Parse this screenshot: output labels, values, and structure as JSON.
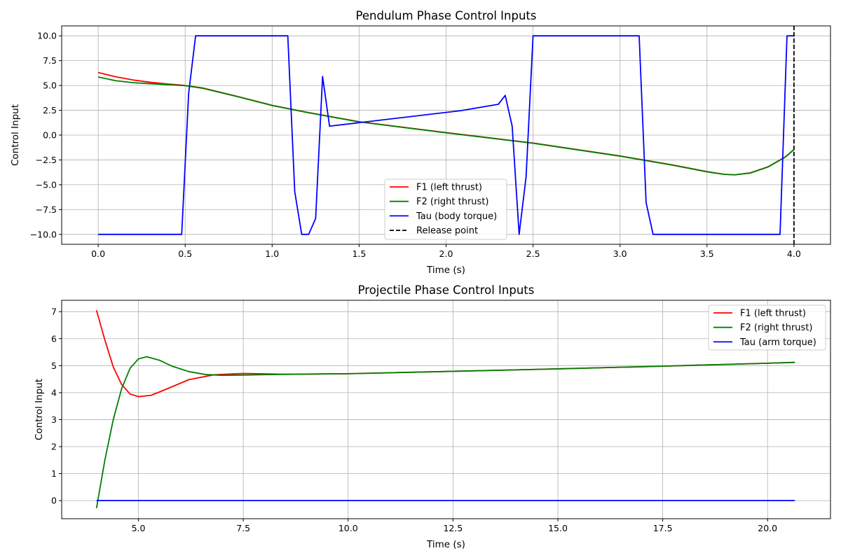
{
  "chart_data": [
    {
      "type": "line",
      "title": "Pendulum Phase Control Inputs",
      "xlabel": "Time (s)",
      "ylabel": "Control Input",
      "xlim": [
        -0.21,
        4.21
      ],
      "ylim": [
        -11.0,
        11.0
      ],
      "xticks": [
        0.0,
        0.5,
        1.0,
        1.5,
        2.0,
        2.5,
        3.0,
        3.5,
        4.0
      ],
      "xtick_labels": [
        "0.0",
        "0.5",
        "1.0",
        "1.5",
        "2.0",
        "2.5",
        "3.0",
        "3.5",
        "4.0"
      ],
      "yticks": [
        -10.0,
        -7.5,
        -5.0,
        -2.5,
        0.0,
        2.5,
        5.0,
        7.5,
        10.0
      ],
      "ytick_labels": [
        "−10.0",
        "−7.5",
        "−5.0",
        "−2.5",
        "0.0",
        "2.5",
        "5.0",
        "7.5",
        "10.0"
      ],
      "grid": true,
      "legend_position": "lower-center",
      "series": [
        {
          "name": "F1 (left thrust)",
          "color": "#ff0000",
          "style": "solid",
          "x": [
            0.0,
            0.1,
            0.2,
            0.3,
            0.4,
            0.5,
            0.6,
            0.8,
            1.0,
            1.2,
            1.5,
            2.0,
            2.5,
            3.0,
            3.3,
            3.5,
            3.6,
            3.66,
            3.75,
            3.85,
            3.95,
            4.0
          ],
          "y": [
            6.3,
            5.88,
            5.55,
            5.32,
            5.15,
            5.0,
            4.75,
            3.9,
            3.0,
            2.3,
            1.35,
            0.25,
            -0.8,
            -2.1,
            -3.0,
            -3.68,
            -3.95,
            -4.0,
            -3.8,
            -3.2,
            -2.2,
            -1.45
          ]
        },
        {
          "name": "F2 (right thrust)",
          "color": "#008000",
          "style": "solid",
          "x": [
            0.0,
            0.1,
            0.2,
            0.3,
            0.4,
            0.5,
            0.6,
            0.8,
            1.0,
            1.2,
            1.5,
            2.0,
            2.5,
            3.0,
            3.3,
            3.5,
            3.6,
            3.66,
            3.75,
            3.85,
            3.95,
            4.0
          ],
          "y": [
            5.85,
            5.48,
            5.28,
            5.18,
            5.08,
            4.98,
            4.72,
            3.88,
            2.98,
            2.28,
            1.33,
            0.23,
            -0.82,
            -2.12,
            -3.02,
            -3.7,
            -3.96,
            -4.0,
            -3.82,
            -3.22,
            -2.22,
            -1.47
          ]
        },
        {
          "name": "Tau (body torque)",
          "color": "#0000ff",
          "style": "solid",
          "x": [
            0.0,
            0.48,
            0.52,
            0.56,
            1.09,
            1.13,
            1.17,
            1.21,
            1.25,
            1.29,
            1.33,
            2.08,
            2.3,
            2.34,
            2.38,
            2.42,
            2.46,
            2.5,
            3.11,
            3.15,
            3.19,
            3.92,
            3.96,
            4.0
          ],
          "y": [
            -10.0,
            -10.0,
            4.2,
            10.0,
            10.0,
            -5.7,
            -10.0,
            -10.0,
            -8.4,
            5.9,
            0.9,
            2.45,
            3.1,
            4.0,
            0.9,
            -10.0,
            -4.2,
            10.0,
            10.0,
            -6.8,
            -10.0,
            -10.0,
            10.0,
            10.0
          ]
        },
        {
          "name": "Release point",
          "color": "#000000",
          "style": "dashed",
          "x": [
            4.0,
            4.0
          ],
          "y": [
            -11.0,
            11.0
          ]
        }
      ]
    },
    {
      "type": "line",
      "title": "Projectile Phase Control Inputs",
      "xlabel": "Time (s)",
      "ylabel": "Control Input",
      "xlim": [
        3.17,
        21.5
      ],
      "ylim": [
        -0.67,
        7.42
      ],
      "xticks": [
        5.0,
        7.5,
        10.0,
        12.5,
        15.0,
        17.5,
        20.0
      ],
      "xtick_labels": [
        "5.0",
        "7.5",
        "10.0",
        "12.5",
        "15.0",
        "17.5",
        "20.0"
      ],
      "yticks": [
        0,
        1,
        2,
        3,
        4,
        5,
        6,
        7
      ],
      "ytick_labels": [
        "0",
        "1",
        "2",
        "3",
        "4",
        "5",
        "6",
        "7"
      ],
      "grid": true,
      "legend_position": "upper-right",
      "series": [
        {
          "name": "F1 (left thrust)",
          "color": "#ff0000",
          "style": "solid",
          "x": [
            4.0,
            4.2,
            4.4,
            4.6,
            4.8,
            5.0,
            5.3,
            5.7,
            6.2,
            6.8,
            7.5,
            8.5,
            10.0,
            12.5,
            15.0,
            17.5,
            20.0,
            20.65
          ],
          "y": [
            7.05,
            5.95,
            4.95,
            4.3,
            3.95,
            3.85,
            3.9,
            4.15,
            4.48,
            4.66,
            4.71,
            4.68,
            4.7,
            4.79,
            4.88,
            4.98,
            5.09,
            5.12
          ]
        },
        {
          "name": "F2 (right thrust)",
          "color": "#008000",
          "style": "solid",
          "x": [
            4.0,
            4.2,
            4.4,
            4.6,
            4.8,
            5.0,
            5.2,
            5.5,
            5.8,
            6.2,
            6.6,
            7.0,
            7.5,
            8.5,
            10.0,
            12.5,
            15.0,
            17.5,
            20.0,
            20.65
          ],
          "y": [
            -0.28,
            1.5,
            3.0,
            4.15,
            4.9,
            5.25,
            5.33,
            5.2,
            4.98,
            4.78,
            4.67,
            4.64,
            4.65,
            4.68,
            4.7,
            4.79,
            4.88,
            4.98,
            5.09,
            5.12
          ]
        },
        {
          "name": "Tau (arm torque)",
          "color": "#0000ff",
          "style": "solid",
          "x": [
            4.0,
            20.65
          ],
          "y": [
            0.0,
            0.0
          ]
        }
      ]
    }
  ]
}
